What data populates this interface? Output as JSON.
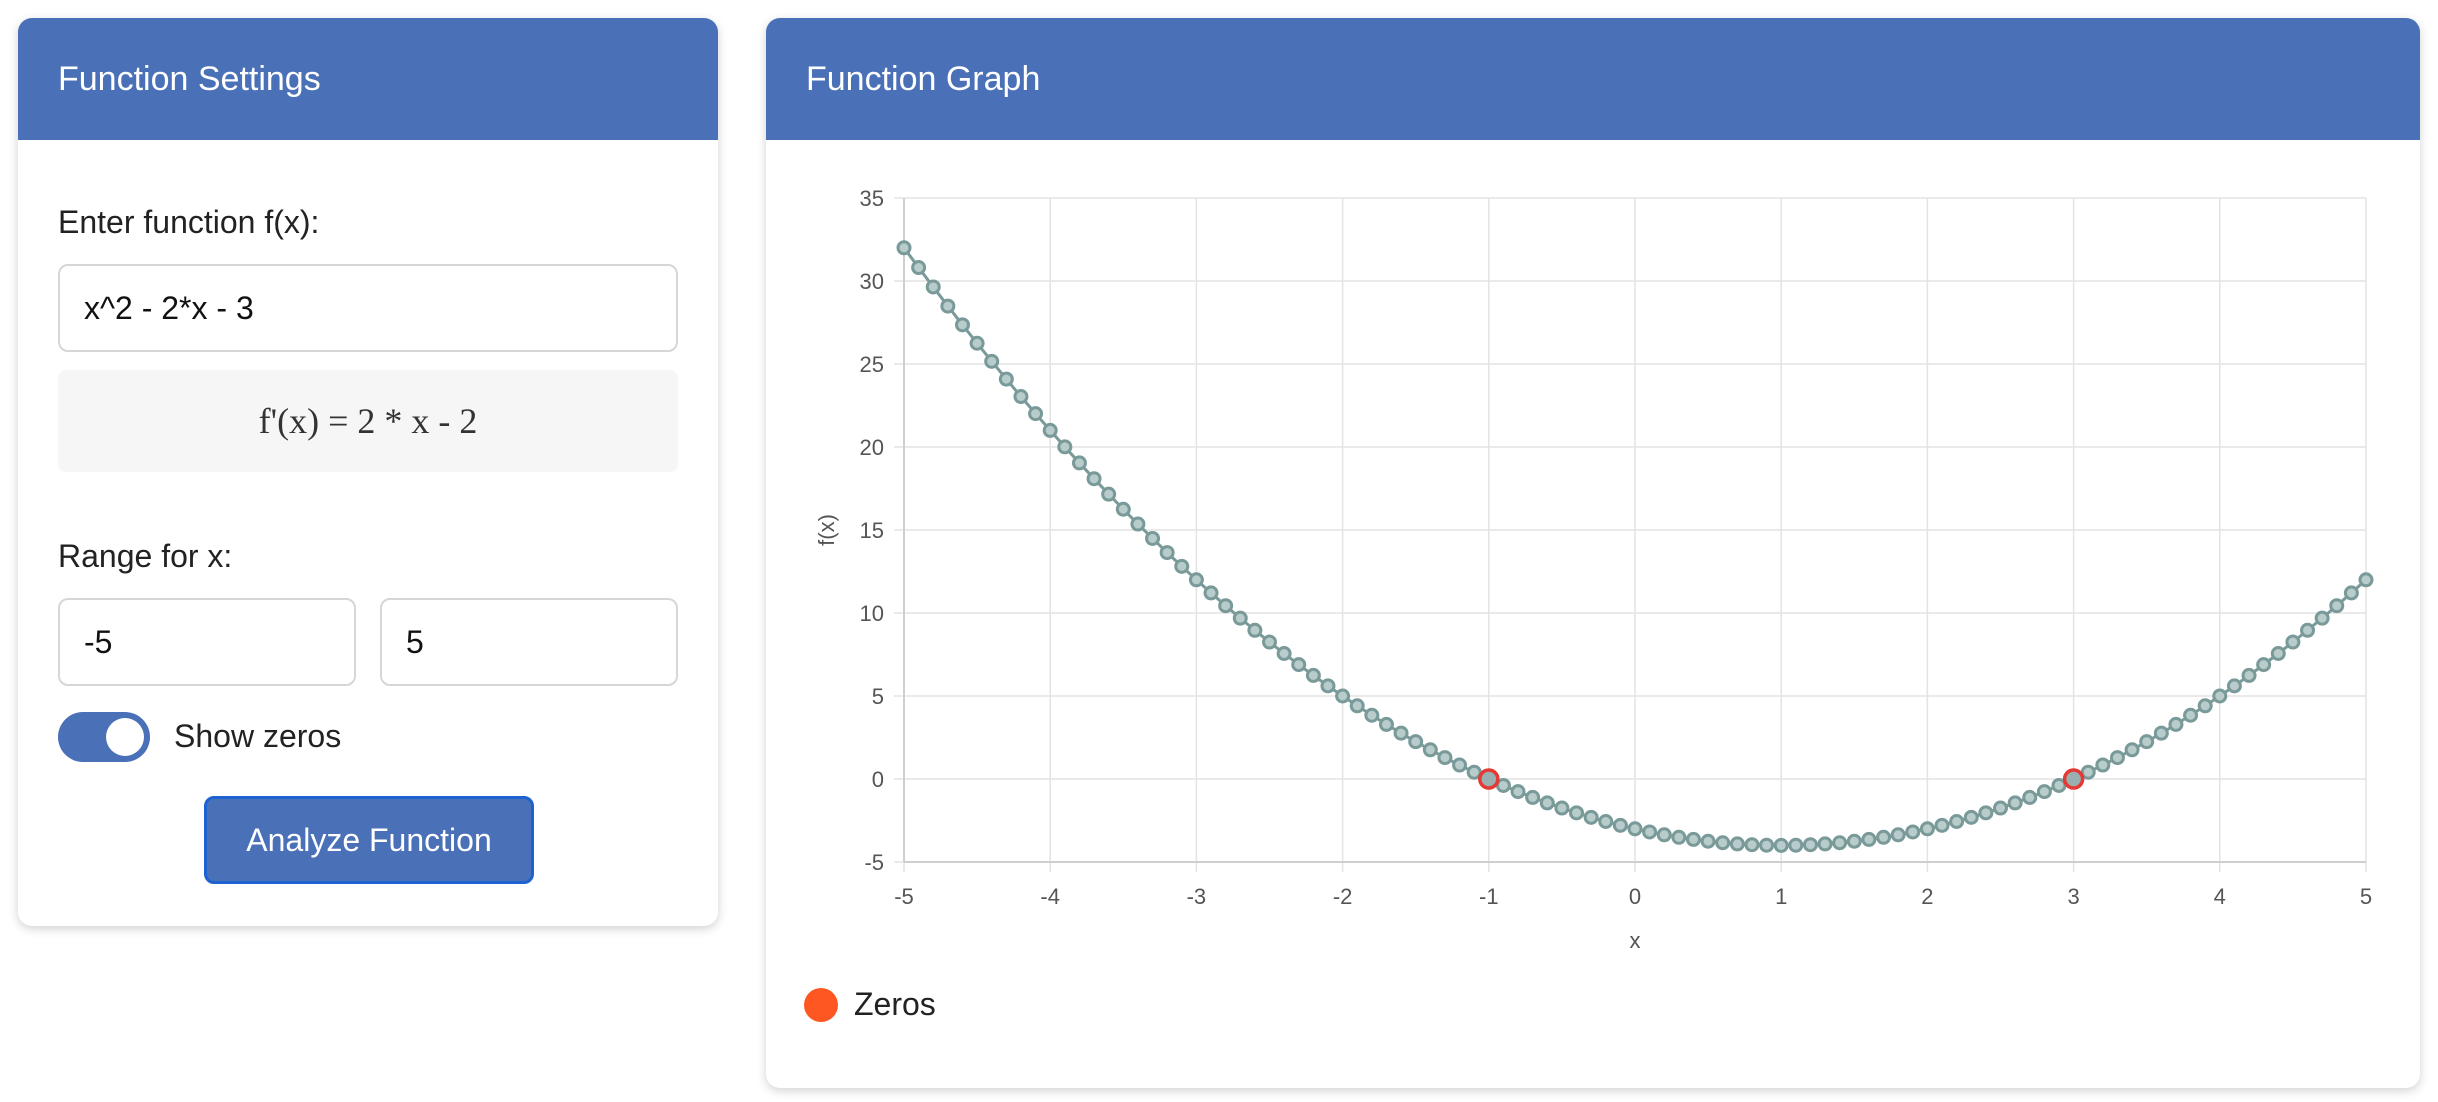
{
  "settings": {
    "title": "Function Settings",
    "function_label": "Enter function f(x):",
    "function_value": "x^2 - 2*x - 3",
    "derivative": "f'(x) = 2 * x - 2",
    "range_label": "Range for x:",
    "range_min": "-5",
    "range_max": "5",
    "show_zeros_label": "Show zeros",
    "show_zeros": true,
    "analyze_label": "Analyze Function"
  },
  "graph": {
    "title": "Function Graph",
    "legend_label": "Zeros"
  },
  "colors": {
    "header": "#4a70b7",
    "curve": "#7a9a9a",
    "zero_point": "#e53935",
    "legend_zero": "#ff5722"
  },
  "chart_data": {
    "type": "line",
    "function": "x^2 - 2*x - 3",
    "xlabel": "x",
    "ylabel": "f(x)",
    "xlim": [
      -5,
      5
    ],
    "ylim": [
      -5,
      35
    ],
    "x_ticks": [
      -5,
      -4,
      -3,
      -2,
      -1,
      0,
      1,
      2,
      3,
      4,
      5
    ],
    "y_ticks": [
      -5,
      0,
      5,
      10,
      15,
      20,
      25,
      30,
      35
    ],
    "sample_step": 0.1,
    "series": [],
    "zeros": [
      {
        "x": -1,
        "y": 0
      },
      {
        "x": 3,
        "y": 0
      }
    ],
    "grid": true,
    "legend_position": "bottom-left"
  }
}
